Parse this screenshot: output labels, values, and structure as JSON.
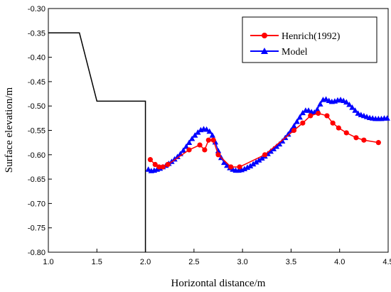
{
  "chart_data": {
    "type": "line",
    "xlabel": "Horizontal distance/m",
    "ylabel": "Surface elevation/m",
    "xlim": [
      1.0,
      4.5
    ],
    "ylim": [
      -0.8,
      -0.3
    ],
    "x_ticks": [
      "1.0",
      "1.5",
      "2.0",
      "2.5",
      "3.0",
      "3.5",
      "4.0",
      "4.5"
    ],
    "y_ticks": [
      "-0.30",
      "-0.35",
      "-0.40",
      "-0.45",
      "-0.50",
      "-0.55",
      "-0.60",
      "-0.65",
      "-0.70",
      "-0.75",
      "-0.80"
    ],
    "grid": false,
    "legend": {
      "position": "top-right",
      "entries": [
        "Henrich(1992)",
        "Model"
      ]
    },
    "profile": {
      "color": "#000000",
      "x": [
        1.0,
        1.32,
        1.5,
        2.0,
        2.0
      ],
      "y": [
        -0.35,
        -0.35,
        -0.49,
        -0.49,
        -0.8
      ]
    },
    "series": [
      {
        "name": "Henrich(1992)",
        "color": "#ff0000",
        "marker": "circle",
        "x": [
          2.05,
          2.1,
          2.14,
          2.18,
          2.23,
          2.45,
          2.56,
          2.61,
          2.65,
          2.7,
          2.75,
          2.88,
          2.97,
          3.23,
          3.53,
          3.62,
          3.7,
          3.78,
          3.87,
          3.93,
          3.99,
          4.07,
          4.17,
          4.25,
          4.4
        ],
        "y": [
          -0.61,
          -0.62,
          -0.625,
          -0.625,
          -0.62,
          -0.59,
          -0.58,
          -0.59,
          -0.57,
          -0.57,
          -0.6,
          -0.625,
          -0.625,
          -0.6,
          -0.55,
          -0.535,
          -0.52,
          -0.515,
          -0.52,
          -0.535,
          -0.545,
          -0.555,
          -0.565,
          -0.57,
          -0.575
        ]
      },
      {
        "name": "Model",
        "color": "#0000ff",
        "marker": "triangle",
        "x": [
          2.03,
          2.06,
          2.09,
          2.12,
          2.15,
          2.18,
          2.21,
          2.24,
          2.27,
          2.3,
          2.33,
          2.36,
          2.39,
          2.42,
          2.45,
          2.48,
          2.51,
          2.54,
          2.57,
          2.6,
          2.63,
          2.66,
          2.69,
          2.72,
          2.75,
          2.78,
          2.81,
          2.84,
          2.87,
          2.9,
          2.93,
          2.96,
          2.99,
          3.02,
          3.05,
          3.08,
          3.11,
          3.14,
          3.17,
          3.2,
          3.23,
          3.26,
          3.29,
          3.32,
          3.35,
          3.38,
          3.41,
          3.44,
          3.47,
          3.5,
          3.53,
          3.56,
          3.59,
          3.62,
          3.65,
          3.68,
          3.71,
          3.74,
          3.77,
          3.8,
          3.83,
          3.86,
          3.89,
          3.92,
          3.95,
          3.98,
          4.01,
          4.04,
          4.07,
          4.1,
          4.13,
          4.16,
          4.19,
          4.22,
          4.25,
          4.28,
          4.31,
          4.34,
          4.37,
          4.4,
          4.43,
          4.46,
          4.49
        ],
        "y": [
          -0.63,
          -0.633,
          -0.632,
          -0.63,
          -0.628,
          -0.625,
          -0.622,
          -0.618,
          -0.614,
          -0.609,
          -0.604,
          -0.598,
          -0.591,
          -0.583,
          -0.575,
          -0.567,
          -0.56,
          -0.554,
          -0.549,
          -0.547,
          -0.548,
          -0.552,
          -0.56,
          -0.574,
          -0.592,
          -0.606,
          -0.616,
          -0.622,
          -0.627,
          -0.63,
          -0.632,
          -0.632,
          -0.631,
          -0.629,
          -0.626,
          -0.623,
          -0.619,
          -0.615,
          -0.611,
          -0.607,
          -0.603,
          -0.598,
          -0.593,
          -0.588,
          -0.583,
          -0.578,
          -0.572,
          -0.565,
          -0.558,
          -0.55,
          -0.541,
          -0.532,
          -0.523,
          -0.514,
          -0.509,
          -0.509,
          -0.512,
          -0.513,
          -0.507,
          -0.496,
          -0.487,
          -0.486,
          -0.489,
          -0.491,
          -0.49,
          -0.488,
          -0.487,
          -0.489,
          -0.492,
          -0.497,
          -0.503,
          -0.509,
          -0.515,
          -0.518,
          -0.52,
          -0.522,
          -0.524,
          -0.525,
          -0.526,
          -0.526,
          -0.526,
          -0.525,
          -0.525
        ]
      }
    ]
  }
}
